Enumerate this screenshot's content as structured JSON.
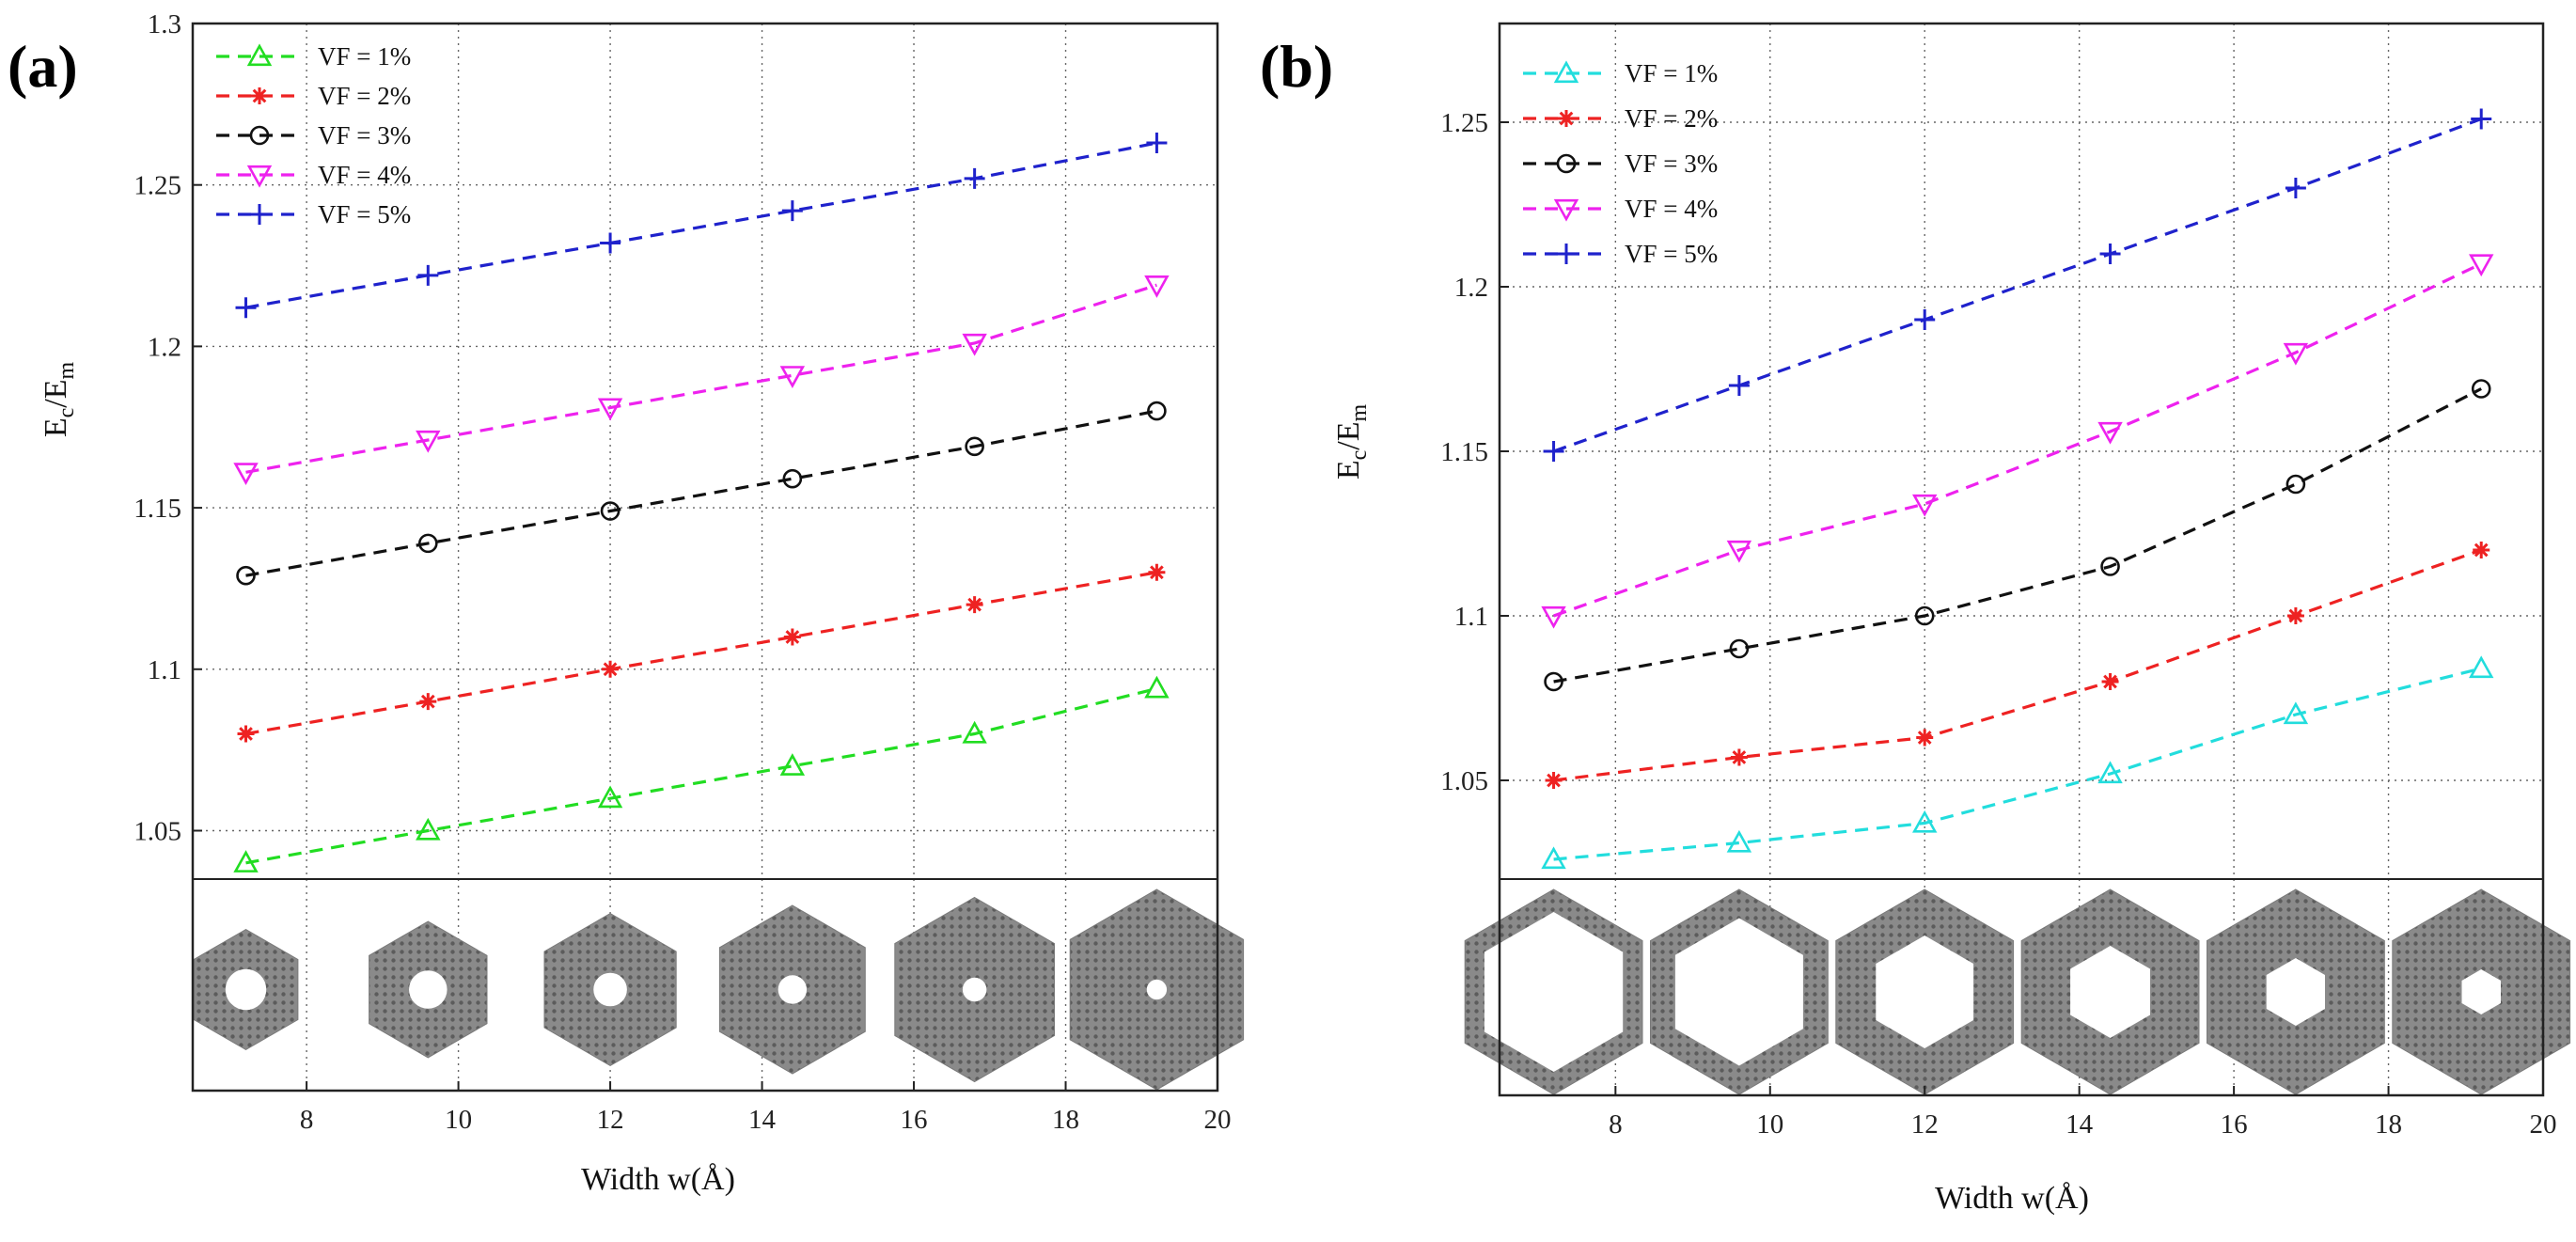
{
  "chart_data": [
    {
      "panel_label": "(a)",
      "type": "line",
      "xlabel": "Width w(Å)",
      "ylabel_main": "E",
      "ylabel_sub1": "c",
      "ylabel_mid": "/E",
      "ylabel_sub2": "m",
      "xlim": [
        6.5,
        20
      ],
      "ylim": [
        1.035,
        1.3
      ],
      "x_ticks": [
        8,
        10,
        12,
        14,
        16,
        18,
        20
      ],
      "y_ticks": [
        1.05,
        1.1,
        1.15,
        1.2,
        1.25,
        1.3
      ],
      "x_tick_labels": [
        "8",
        "10",
        "12",
        "14",
        "16",
        "18",
        "20"
      ],
      "y_tick_labels": [
        "1.05",
        "1.1",
        "1.15",
        "1.2",
        "1.25",
        "1.3"
      ],
      "grid": true,
      "legend_position": "top-left",
      "x": [
        7.2,
        9.6,
        12.0,
        14.4,
        16.8,
        19.2
      ],
      "series": [
        {
          "name": "VF = 1%",
          "color": "#22dd22",
          "marker": "triangle-up",
          "values": [
            1.04,
            1.05,
            1.06,
            1.07,
            1.08,
            1.094
          ]
        },
        {
          "name": "VF = 2%",
          "color": "#ee2222",
          "marker": "asterisk",
          "values": [
            1.08,
            1.09,
            1.1,
            1.11,
            1.12,
            1.13
          ]
        },
        {
          "name": "VF = 3%",
          "color": "#111111",
          "marker": "circle",
          "values": [
            1.129,
            1.139,
            1.149,
            1.159,
            1.169,
            1.18
          ]
        },
        {
          "name": "VF = 4%",
          "color": "#ee22ee",
          "marker": "triangle-down",
          "values": [
            1.161,
            1.171,
            1.181,
            1.191,
            1.201,
            1.219
          ]
        },
        {
          "name": "VF = 5%",
          "color": "#1f22cc",
          "marker": "plus",
          "values": [
            1.212,
            1.222,
            1.232,
            1.242,
            1.252,
            1.263
          ]
        }
      ],
      "inset_hole_sizes": [
        0.34,
        0.28,
        0.22,
        0.17,
        0.13,
        0.1
      ]
    },
    {
      "panel_label": "(b)",
      "type": "line",
      "xlabel": "Width w(Å)",
      "ylabel_main": "E",
      "ylabel_sub1": "c",
      "ylabel_mid": "/E",
      "ylabel_sub2": "m",
      "xlim": [
        6.5,
        20
      ],
      "ylim": [
        1.02,
        1.28
      ],
      "x_ticks": [
        8,
        10,
        12,
        14,
        16,
        18,
        20
      ],
      "y_ticks": [
        1.05,
        1.1,
        1.15,
        1.2,
        1.25
      ],
      "x_tick_labels": [
        "8",
        "10",
        "12",
        "14",
        "16",
        "18",
        "20"
      ],
      "y_tick_labels": [
        "1.05",
        "1.1",
        "1.15",
        "1.2",
        "1.25"
      ],
      "grid": true,
      "legend_position": "top-left",
      "x": [
        7.2,
        9.6,
        12.0,
        14.4,
        16.8,
        19.2
      ],
      "series": [
        {
          "name": "VF = 1%",
          "color": "#22dddd",
          "marker": "triangle-up",
          "values": [
            1.026,
            1.031,
            1.037,
            1.052,
            1.07,
            1.084
          ]
        },
        {
          "name": "VF = 2%",
          "color": "#ee2222",
          "marker": "asterisk",
          "values": [
            1.05,
            1.057,
            1.063,
            1.08,
            1.1,
            1.12
          ]
        },
        {
          "name": "VF = 3%",
          "color": "#111111",
          "marker": "circle",
          "values": [
            1.08,
            1.09,
            1.1,
            1.115,
            1.14,
            1.169
          ]
        },
        {
          "name": "VF = 4%",
          "color": "#ee22ee",
          "marker": "triangle-down",
          "values": [
            1.1,
            1.12,
            1.134,
            1.156,
            1.18,
            1.207
          ]
        },
        {
          "name": "VF = 5%",
          "color": "#1f22cc",
          "marker": "plus",
          "values": [
            1.15,
            1.17,
            1.19,
            1.21,
            1.23,
            1.251
          ]
        }
      ],
      "inset_hole_sizes": [
        0.78,
        0.72,
        0.55,
        0.45,
        0.33,
        0.22
      ]
    }
  ]
}
